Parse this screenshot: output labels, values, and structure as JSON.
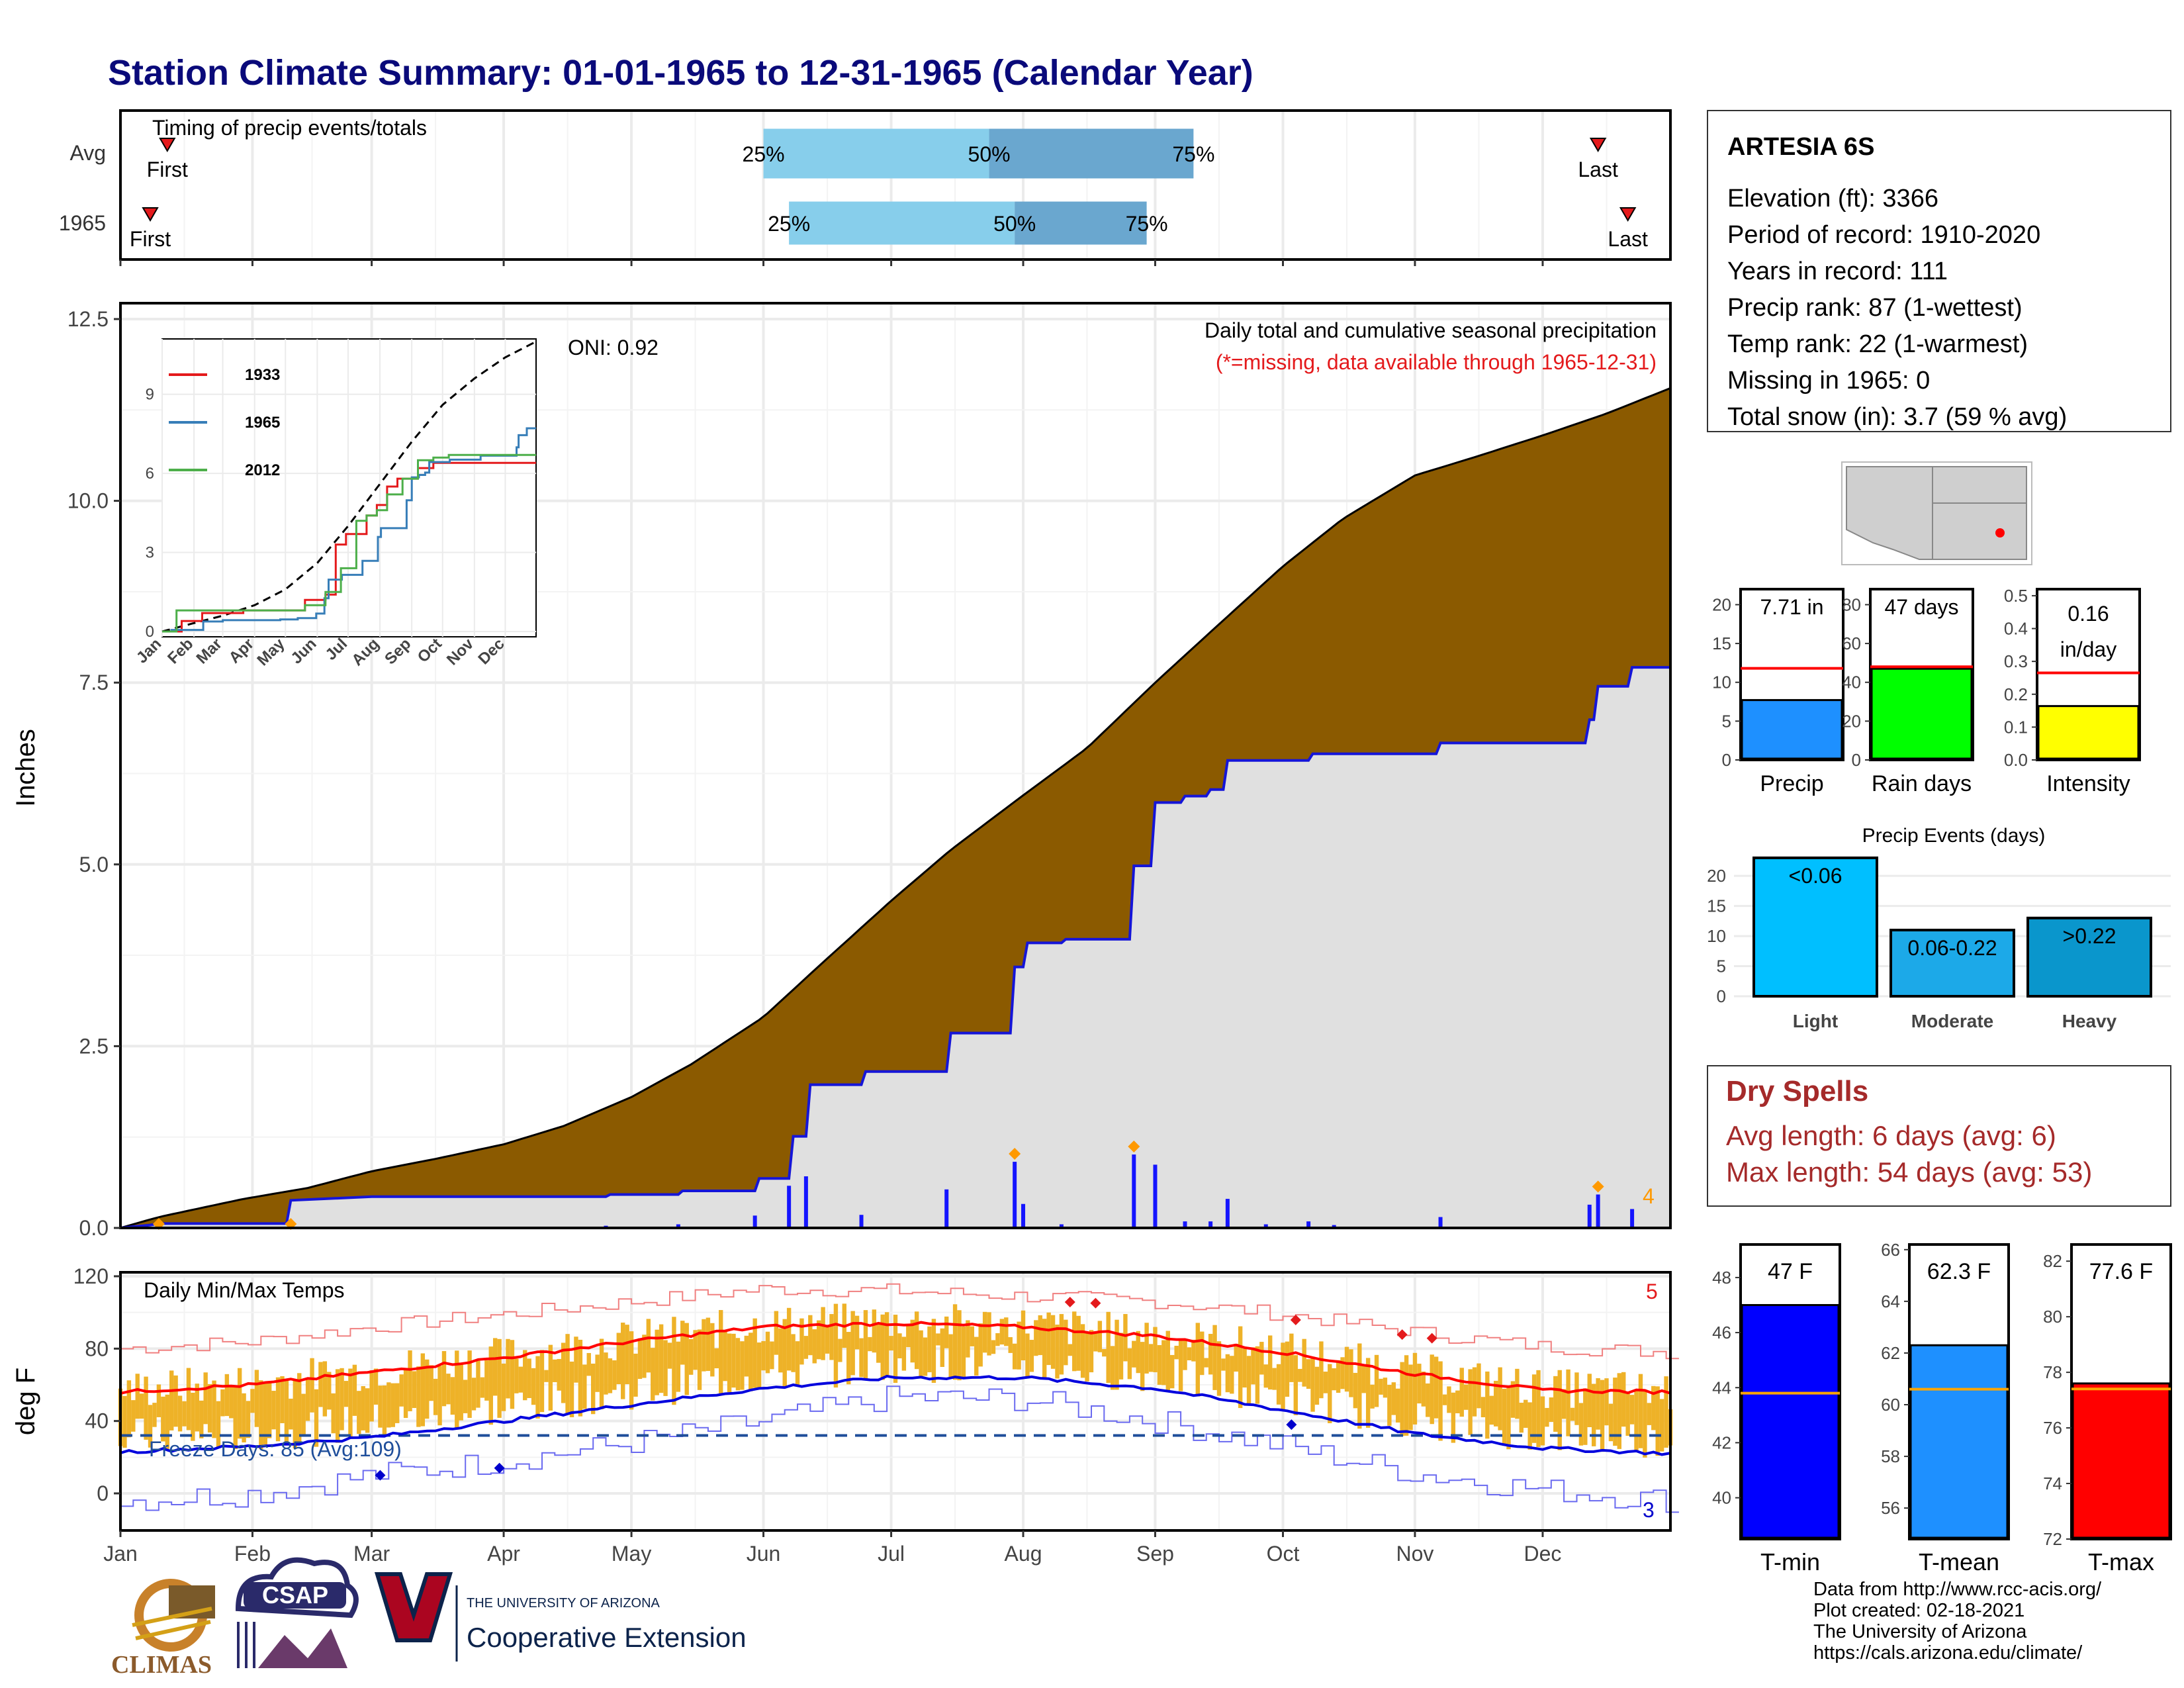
{
  "page": {
    "title": "Station Climate Summary: 01-01-1965 to 12-31-1965 (Calendar Year)"
  },
  "timing": {
    "title": "Timing of precip events/totals",
    "rows": [
      {
        "label": "Avg",
        "first_label": "First",
        "last_label": "Last",
        "first_doy": 12,
        "last_doy": 348,
        "p25_doy": 152,
        "p50_doy": 205,
        "p75_doy": 253
      },
      {
        "label": "1965",
        "first_label": "First",
        "last_label": "Last",
        "first_doy": 8,
        "last_doy": 355,
        "p25_doy": 158,
        "p50_doy": 211,
        "p75_doy": 242
      }
    ],
    "pct_labels": [
      "25%",
      "50%",
      "75%"
    ]
  },
  "precip_panel": {
    "ylabel": "Inches",
    "yticks": [
      "0.0",
      "2.5",
      "5.0",
      "7.5",
      "10.0",
      "12.5"
    ],
    "title": "Daily total and cumulative seasonal precipitation",
    "note": "(*=missing, data available through 1965-12-31)",
    "oni": "ONI: 0.92",
    "event_count": "4"
  },
  "inset": {
    "yticks": [
      "0",
      "3",
      "6",
      "9"
    ],
    "months": [
      "Jan",
      "Feb",
      "Mar",
      "Apr",
      "May",
      "Jun",
      "Jul",
      "Aug",
      "Sep",
      "Oct",
      "Nov",
      "Dec"
    ],
    "legend": [
      {
        "name": "1933",
        "color": "#e41a1c"
      },
      {
        "name": "1965",
        "color": "#377eb8"
      },
      {
        "name": "2012",
        "color": "#4daf4a"
      }
    ]
  },
  "temp_panel": {
    "ylabel": "deg F",
    "yticks": [
      "0",
      "40",
      "80",
      "120"
    ],
    "title": "Daily Min/Max Temps",
    "freeze_label": "Freeze Days: 85 (Avg:109)",
    "max_record_count": "5",
    "min_record_count": "3"
  },
  "months": [
    "Jan",
    "Feb",
    "Mar",
    "Apr",
    "May",
    "Jun",
    "Jul",
    "Aug",
    "Sep",
    "Oct",
    "Nov",
    "Dec"
  ],
  "station": {
    "name": "ARTESIA 6S",
    "lines": [
      "Elevation (ft): 3366",
      "Period of record: 1910-2020",
      "Years in record: 111",
      "Precip rank: 87 (1-wettest)",
      "Temp rank: 22 (1-warmest)",
      "Missing in 1965: 0",
      "Total snow (in): 3.7 (59 % avg)"
    ]
  },
  "mini_bars": [
    {
      "label": "Precip",
      "value_text": "7.71 in",
      "value": 7.71,
      "avg": 11.8,
      "ymax": 22,
      "yticks": [
        "0",
        "5",
        "10",
        "15",
        "20"
      ],
      "color": "#1e90ff"
    },
    {
      "label": "Rain days",
      "value_text": "47 days",
      "value": 47,
      "avg": 48,
      "ymax": 88,
      "yticks": [
        "0",
        "20",
        "40",
        "60",
        "80"
      ],
      "color": "#00ff00"
    },
    {
      "label": "Intensity",
      "value_text": "0.16",
      "value_text2": "in/day",
      "value": 0.164,
      "avg": 0.265,
      "ymax": 0.52,
      "yticks": [
        "0.0",
        "0.1",
        "0.2",
        "0.3",
        "0.4",
        "0.5"
      ],
      "color": "#ffff00"
    }
  ],
  "precip_events": {
    "title": "Precip Events (days)",
    "yticks": [
      "0",
      "5",
      "10",
      "15",
      "20"
    ],
    "bars": [
      {
        "label": "Light",
        "value_text": "<0.06",
        "value": 23,
        "color": "#00bfff"
      },
      {
        "label": "Moderate",
        "value_text": "0.06-0.22",
        "value": 11,
        "color": "#1ca9e8"
      },
      {
        "label": "Heavy",
        "value_text": ">0.22",
        "value": 13,
        "color": "#0a96cc"
      }
    ]
  },
  "dry_spells": {
    "title": "Dry Spells",
    "avg": "Avg length: 6 days (avg: 6)",
    "max": "Max length: 54 days (avg: 53)"
  },
  "temp_bars": [
    {
      "label": "T-min",
      "value_text": "47 F",
      "value": 47,
      "avg": 43.8,
      "ymin": 38.5,
      "ymax": 49.2,
      "yticks": [
        "40",
        "42",
        "44",
        "46",
        "48"
      ],
      "color": "#0000ff"
    },
    {
      "label": "T-mean",
      "value_text": "62.3 F",
      "value": 62.3,
      "avg": 60.6,
      "ymin": 54.8,
      "ymax": 66.2,
      "yticks": [
        "56",
        "58",
        "60",
        "62",
        "64",
        "66"
      ],
      "color": "#1e90ff"
    },
    {
      "label": "T-max",
      "value_text": "77.6 F",
      "value": 77.6,
      "avg": 77.4,
      "ymin": 72,
      "ymax": 82.6,
      "yticks": [
        "72",
        "74",
        "76",
        "78",
        "80",
        "82"
      ],
      "color": "#ff0000"
    }
  ],
  "footer": {
    "lines": [
      "Data from http://www.rcc-acis.org/",
      "Plot created: 02-18-2021",
      "The University of Arizona",
      "https://cals.arizona.edu/climate/"
    ]
  },
  "logos": {
    "climas": "CLIMAS",
    "csap": "CSAP",
    "ua_small": "THE UNIVERSITY OF ARIZONA",
    "coop": "Cooperative Extension"
  },
  "chart_data": [
    {
      "type": "area",
      "title": "Daily total and cumulative seasonal precipitation",
      "ylabel": "Inches",
      "ylim": [
        0,
        12.5
      ],
      "xlim_day": [
        1,
        365
      ],
      "series": [
        {
          "name": "avg_cumulative",
          "x": [
            1,
            10,
            30,
            45,
            60,
            75,
            91,
            105,
            121,
            135,
            152,
            165,
            182,
            196,
            213,
            228,
            244,
            258,
            274,
            288,
            305,
            319,
            335,
            350,
            365
          ],
          "y": [
            0,
            0.15,
            0.4,
            0.55,
            0.78,
            0.95,
            1.15,
            1.4,
            1.8,
            2.25,
            2.9,
            3.6,
            4.5,
            5.2,
            5.95,
            6.6,
            7.5,
            8.25,
            9.1,
            9.75,
            10.35,
            10.6,
            10.9,
            11.2,
            11.55
          ]
        },
        {
          "name": "1965_cumulative",
          "x": [
            1,
            8,
            10,
            40,
            41,
            60,
            115,
            116,
            132,
            133,
            150,
            151,
            158,
            159,
            162,
            163,
            175,
            176,
            195,
            196,
            210,
            211,
            213,
            214,
            222,
            223,
            238,
            239,
            243,
            244,
            250,
            251,
            256,
            257,
            260,
            261,
            280,
            281,
            310,
            311,
            345,
            346,
            347,
            348,
            355,
            356,
            365
          ],
          "y": [
            0,
            0.04,
            0.06,
            0.06,
            0.38,
            0.43,
            0.43,
            0.46,
            0.46,
            0.51,
            0.51,
            0.68,
            0.68,
            1.26,
            1.26,
            1.97,
            1.97,
            2.15,
            2.15,
            2.68,
            2.68,
            3.59,
            3.59,
            3.92,
            3.92,
            3.97,
            3.97,
            4.98,
            4.98,
            5.85,
            5.85,
            5.94,
            5.94,
            6.03,
            6.03,
            6.43,
            6.43,
            6.52,
            6.52,
            6.67,
            6.67,
            6.99,
            6.99,
            7.45,
            7.45,
            7.71,
            7.71
          ]
        }
      ],
      "daily_bars_in": [
        [
          115,
          0.03
        ],
        [
          132,
          0.05
        ],
        [
          150,
          0.17
        ],
        [
          158,
          0.58
        ],
        [
          162,
          0.71
        ],
        [
          175,
          0.18
        ],
        [
          195,
          0.53
        ],
        [
          211,
          0.91
        ],
        [
          213,
          0.33
        ],
        [
          222,
          0.05
        ],
        [
          239,
          1.01
        ],
        [
          244,
          0.87
        ],
        [
          251,
          0.09
        ],
        [
          257,
          0.09
        ],
        [
          261,
          0.4
        ],
        [
          270,
          0.05
        ],
        [
          280,
          0.09
        ],
        [
          286,
          0.04
        ],
        [
          311,
          0.15
        ],
        [
          346,
          0.32
        ],
        [
          348,
          0.46
        ],
        [
          356,
          0.26
        ]
      ]
    },
    {
      "type": "line",
      "title": "",
      "x_months": [
        "Jan",
        "Feb",
        "Mar",
        "Apr",
        "May",
        "Jun",
        "Jul",
        "Aug",
        "Sep",
        "Oct",
        "Nov",
        "Dec"
      ],
      "ylim": [
        0,
        11
      ],
      "series": [
        {
          "name": "avg",
          "style": "dashed",
          "x": [
            1,
            30,
            60,
            91,
            121,
            152,
            182,
            213,
            244,
            274,
            305,
            335,
            365
          ],
          "y": [
            0,
            0.3,
            0.6,
            1.0,
            1.6,
            2.6,
            4.0,
            5.6,
            7.2,
            8.6,
            9.6,
            10.4,
            11.0
          ]
        },
        {
          "name": "1933",
          "x": [
            1,
            20,
            40,
            60,
            80,
            110,
            140,
            160,
            170,
            180,
            190,
            200,
            210,
            220,
            230,
            240,
            250,
            265,
            280,
            300,
            330,
            365
          ],
          "y": [
            0,
            0.4,
            0.7,
            0.7,
            0.8,
            0.8,
            1.2,
            1.4,
            3.3,
            3.7,
            3.7,
            4.4,
            4.8,
            5.5,
            5.8,
            5.8,
            6.2,
            6.4,
            6.4,
            6.4,
            6.4,
            6.4
          ]
        },
        {
          "name": "1965",
          "x": [
            1,
            10,
            41,
            60,
            116,
            133,
            151,
            159,
            163,
            176,
            196,
            211,
            214,
            239,
            244,
            251,
            257,
            261,
            281,
            311,
            346,
            348,
            356,
            365
          ],
          "y": [
            0,
            0.06,
            0.38,
            0.43,
            0.46,
            0.51,
            0.68,
            1.26,
            1.97,
            2.15,
            2.68,
            3.59,
            3.92,
            4.98,
            5.85,
            5.94,
            6.03,
            6.43,
            6.52,
            6.67,
            6.99,
            7.45,
            7.71,
            7.71
          ]
        },
        {
          "name": "2012",
          "x": [
            1,
            15,
            40,
            80,
            120,
            140,
            160,
            175,
            190,
            200,
            210,
            220,
            235,
            250,
            265,
            280,
            310,
            340,
            365
          ],
          "y": [
            0,
            0.8,
            0.8,
            0.8,
            0.8,
            1.0,
            1.5,
            2.4,
            4.2,
            4.4,
            4.6,
            5.2,
            5.8,
            6.5,
            6.6,
            6.7,
            6.7,
            6.7,
            6.7
          ]
        }
      ]
    },
    {
      "type": "bar",
      "title": "Daily Min/Max Temps",
      "ylabel": "deg F",
      "ylim": [
        -20,
        122
      ],
      "freeze_threshold": 32,
      "series": [
        {
          "name": "avg_max",
          "x": [
            1,
            32,
            60,
            91,
            121,
            152,
            182,
            213,
            244,
            274,
            305,
            335,
            365
          ],
          "y": [
            56,
            60,
            67,
            75,
            84,
            92,
            94,
            92,
            87,
            78,
            66,
            57,
            56
          ]
        },
        {
          "name": "avg_min",
          "x": [
            1,
            32,
            60,
            91,
            121,
            152,
            182,
            213,
            244,
            274,
            305,
            335,
            365
          ],
          "y": [
            23,
            26,
            31,
            40,
            49,
            58,
            64,
            64,
            58,
            46,
            33,
            25,
            22
          ]
        },
        {
          "name": "record_max",
          "x": [
            1,
            32,
            60,
            91,
            121,
            152,
            182,
            213,
            244,
            274,
            305,
            335,
            365
          ],
          "y": [
            80,
            84,
            92,
            99,
            106,
            113,
            112,
            109,
            106,
            99,
            89,
            81,
            78
          ]
        },
        {
          "name": "record_min",
          "x": [
            1,
            32,
            60,
            91,
            121,
            152,
            182,
            213,
            244,
            274,
            305,
            335,
            365
          ],
          "y": [
            -4,
            0,
            10,
            18,
            28,
            40,
            53,
            52,
            40,
            26,
            11,
            2,
            -4
          ]
        }
      ],
      "record_highs": [
        [
          224,
          5
        ],
        [
          230,
          5
        ],
        [
          277,
          5
        ],
        [
          302,
          5
        ],
        [
          309,
          5
        ]
      ],
      "record_lows": [
        [
          62,
          10
        ],
        [
          90,
          14
        ],
        [
          276,
          38
        ]
      ]
    },
    {
      "type": "bar",
      "title": "",
      "categories": [
        "Precip"
      ],
      "values": [
        7.71
      ],
      "ylim": [
        0,
        22
      ]
    },
    {
      "type": "bar",
      "title": "",
      "categories": [
        "Rain days"
      ],
      "values": [
        47
      ],
      "ylim": [
        0,
        88
      ]
    },
    {
      "type": "bar",
      "title": "",
      "categories": [
        "Intensity"
      ],
      "values": [
        0.16
      ],
      "ylim": [
        0,
        0.52
      ]
    },
    {
      "type": "bar",
      "title": "Precip Events (days)",
      "categories": [
        "Light",
        "Moderate",
        "Heavy"
      ],
      "values": [
        23,
        11,
        13
      ],
      "ylim": [
        0,
        22
      ]
    },
    {
      "type": "bar",
      "title": "",
      "categories": [
        "T-min"
      ],
      "values": [
        47
      ],
      "ylim": [
        38.5,
        49.2
      ]
    },
    {
      "type": "bar",
      "title": "",
      "categories": [
        "T-mean"
      ],
      "values": [
        62.3
      ],
      "ylim": [
        54.8,
        66.2
      ]
    },
    {
      "type": "bar",
      "title": "",
      "categories": [
        "T-max"
      ],
      "values": [
        77.6
      ],
      "ylim": [
        72,
        82.6
      ]
    }
  ]
}
